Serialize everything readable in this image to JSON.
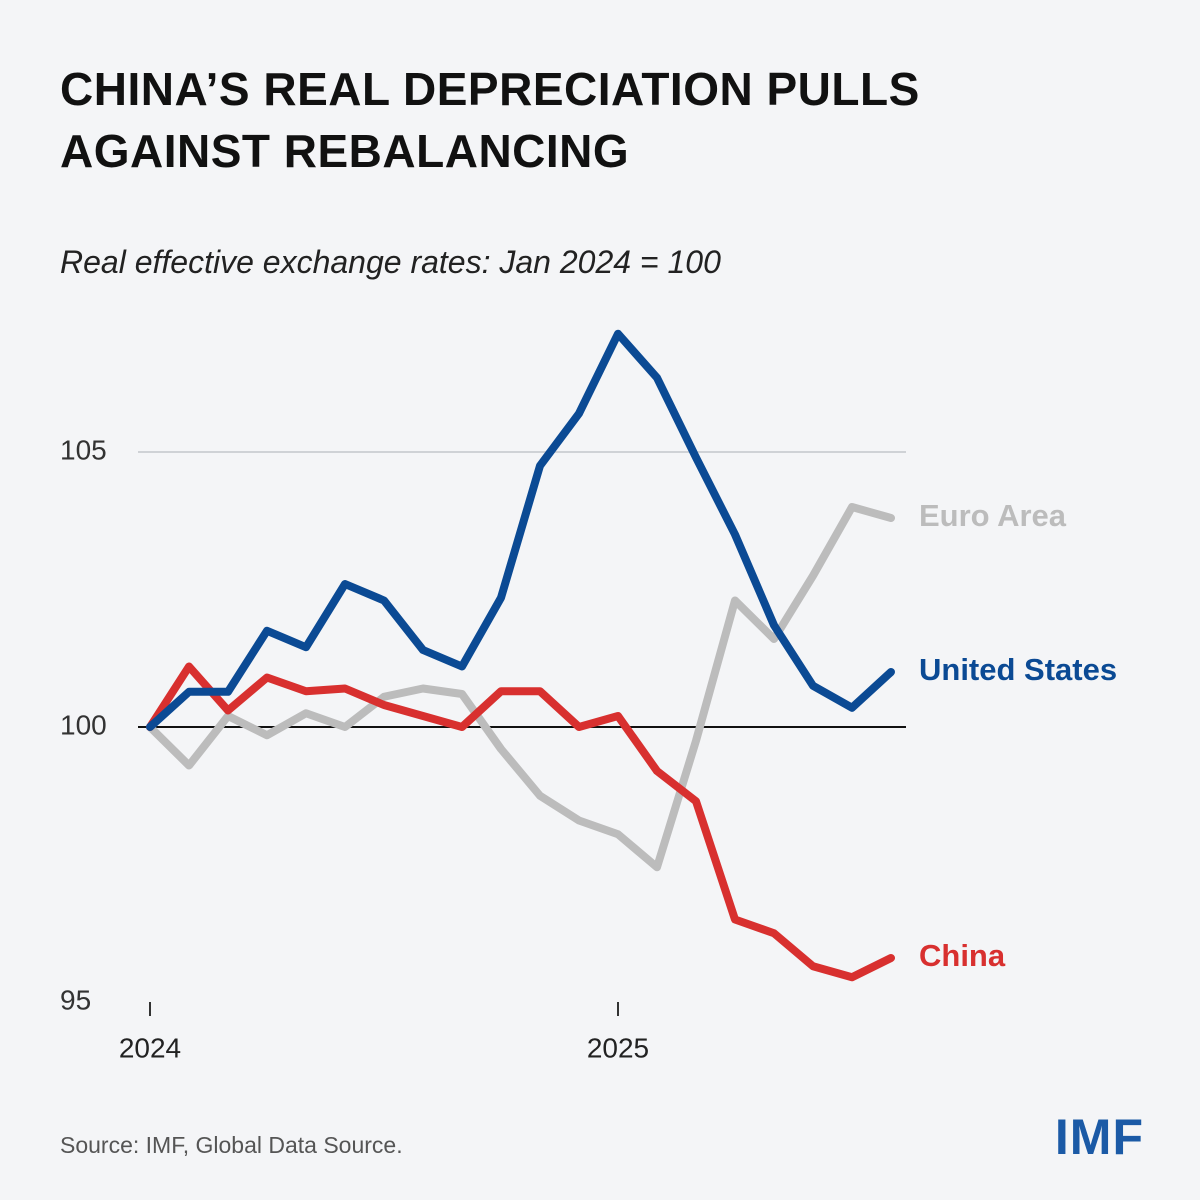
{
  "chart_data": {
    "type": "line",
    "title": "CHINA’S REAL DEPRECIATION PULLS AGAINST REBALANCING",
    "subtitle": "Real effective exchange rates: Jan 2024 = 100",
    "source": "Source: IMF, Global Data Source.",
    "logo": "IMF",
    "categories": [
      "2024",
      null,
      null,
      null,
      null,
      null,
      null,
      null,
      null,
      null,
      null,
      null,
      "2025",
      null,
      null,
      null,
      null,
      null,
      null,
      null
    ],
    "ylim": [
      95,
      107.5
    ],
    "yticks": [
      95,
      100,
      105
    ],
    "grid": true,
    "reference_line": 100,
    "series": [
      {
        "name": "Euro Area",
        "color": "#bcbcbc",
        "values": [
          100,
          99.3,
          100.2,
          99.85,
          100.25,
          100.0,
          100.55,
          100.7,
          100.6,
          99.6,
          98.75,
          98.3,
          98.05,
          97.45,
          99.75,
          102.3,
          101.6,
          102.75,
          104.0,
          103.8
        ]
      },
      {
        "name": "China",
        "color": "#d8302f",
        "values": [
          100,
          101.1,
          100.3,
          100.9,
          100.65,
          100.7,
          100.4,
          100.2,
          100.0,
          100.65,
          100.65,
          100.0,
          100.2,
          99.2,
          98.65,
          96.5,
          96.25,
          95.65,
          95.45,
          95.8
        ]
      },
      {
        "name": "United States",
        "color": "#0b4a94",
        "values": [
          100,
          100.64,
          100.64,
          101.75,
          101.45,
          102.6,
          102.3,
          101.4,
          101.1,
          102.35,
          104.75,
          105.7,
          107.15,
          106.35,
          104.9,
          103.5,
          101.85,
          100.75,
          100.35,
          101.0
        ]
      }
    ]
  }
}
